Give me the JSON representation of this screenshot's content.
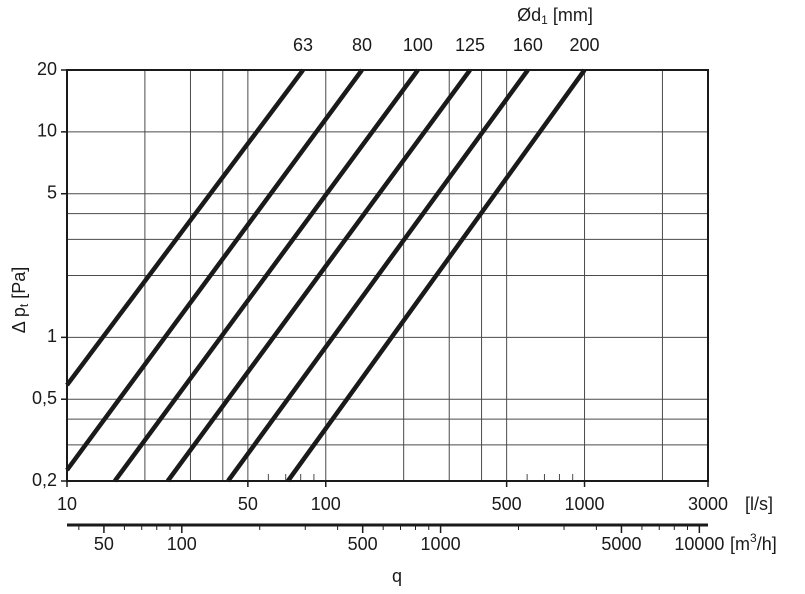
{
  "chart_data": {
    "type": "line",
    "y_label": [
      "Δ p",
      "t",
      " [Pa]"
    ],
    "x_label": "q",
    "x_unit": "[l/s]",
    "x2_unit": [
      "[m",
      "3",
      "/h]"
    ],
    "legend_title": [
      "Ød",
      "1",
      " [mm]"
    ],
    "log_x": true,
    "log_y": true,
    "grid": true,
    "xlim": [
      10,
      3000
    ],
    "ylim": [
      0.2,
      20
    ],
    "xticks": [
      10,
      50,
      100,
      500,
      1000,
      3000
    ],
    "xgrid": [
      20,
      30,
      40,
      50,
      100,
      200,
      300,
      400,
      500,
      1000,
      2000
    ],
    "xminor": [
      60,
      70,
      80,
      90,
      600,
      700,
      800,
      900
    ],
    "yticks": [
      {
        "value": 0.2,
        "label": "0,2"
      },
      {
        "value": 0.5,
        "label": "0,5"
      },
      1,
      5,
      10,
      20
    ],
    "ygrid": [
      0.3,
      0.4,
      0.5,
      1,
      2,
      3,
      4,
      5,
      10
    ],
    "x2lim": [
      36,
      10800
    ],
    "x2ticks": [
      50,
      100,
      500,
      1000,
      5000,
      10000
    ],
    "x2minor": [
      40,
      60,
      70,
      80,
      90,
      200,
      300,
      400,
      600,
      700,
      800,
      900,
      2000,
      3000,
      4000,
      6000,
      7000,
      8000,
      9000
    ],
    "series": [
      {
        "name": "63",
        "color": "#1a1a1a",
        "x": [
          10,
          81.7
        ],
        "values": [
          0.586,
          20
        ]
      },
      {
        "name": "80",
        "color": "#1a1a1a",
        "x": [
          10,
          138
        ],
        "values": [
          0.226,
          20
        ]
      },
      {
        "name": "100",
        "color": "#1a1a1a",
        "x": [
          15.3,
          227
        ],
        "values": [
          0.2,
          20
        ]
      },
      {
        "name": "125",
        "color": "#1a1a1a",
        "x": [
          24.5,
          361
        ],
        "values": [
          0.2,
          20
        ]
      },
      {
        "name": "160",
        "color": "#1a1a1a",
        "x": [
          41.9,
          604
        ],
        "values": [
          0.2,
          20
        ]
      },
      {
        "name": "200",
        "color": "#1a1a1a",
        "x": [
          71.4,
          1000
        ],
        "values": [
          0.2,
          20
        ]
      }
    ]
  }
}
